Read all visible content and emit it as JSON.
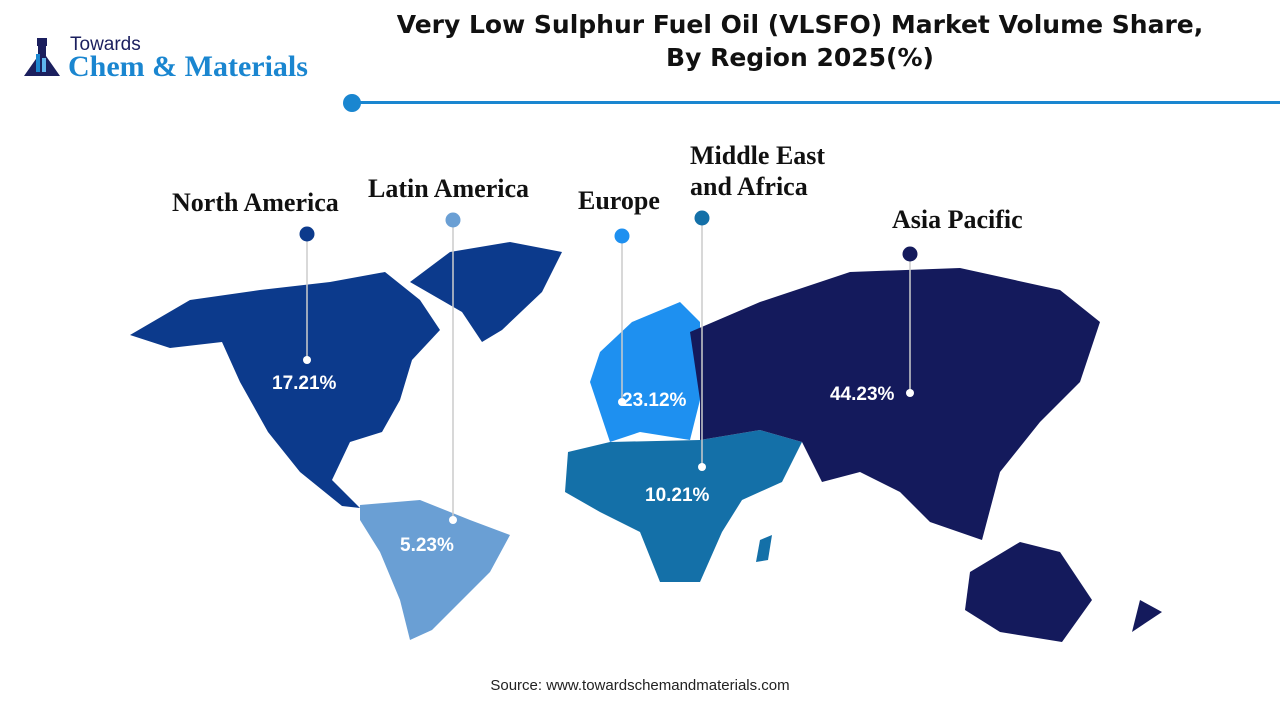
{
  "title_line1": "Very Low Sulphur Fuel Oil (VLSFO) Market Volume Share,",
  "title_line2": "By Region 2025(%)",
  "logo": {
    "line1": "Towards",
    "line2": "Chem & Materials"
  },
  "source": "Source: www.towardschemandmaterials.com",
  "accent_color": "#1a86d0",
  "chart_data": {
    "type": "map",
    "title": "Very Low Sulphur Fuel Oil (VLSFO) Market Volume Share, By Region 2025(%)",
    "regions": [
      {
        "name": "North America",
        "value": 17.21,
        "label": "17.21%",
        "color": "#0c3a8c"
      },
      {
        "name": "Latin America",
        "value": 5.23,
        "label": "5.23%",
        "color": "#6a9fd4"
      },
      {
        "name": "Europe",
        "value": 23.12,
        "label": "23.12%",
        "color": "#1e90f0"
      },
      {
        "name": "Middle East and Africa",
        "name_line1": "Middle East",
        "name_line2": "and Africa",
        "value": 10.21,
        "label": "10.21%",
        "color": "#1470a8"
      },
      {
        "name": "Asia Pacific",
        "value": 44.23,
        "label": "44.23%",
        "color": "#141a5c"
      }
    ]
  }
}
